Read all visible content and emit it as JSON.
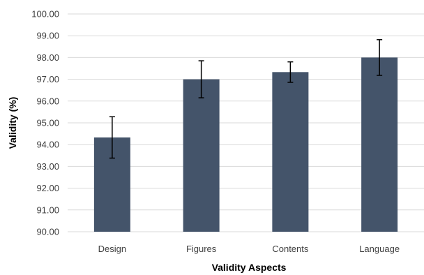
{
  "chart_data": {
    "type": "bar",
    "title": "",
    "xlabel": "Validity Aspects",
    "ylabel": "Validity (%)",
    "categories": [
      "Design",
      "Figures",
      "Contents",
      "Language"
    ],
    "values": [
      94.33,
      97.0,
      97.33,
      98.0
    ],
    "error": [
      0.95,
      0.85,
      0.47,
      0.82
    ],
    "ylim": [
      90,
      100
    ],
    "yticks": [
      "90.00",
      "91.00",
      "92.00",
      "93.00",
      "94.00",
      "95.00",
      "96.00",
      "97.00",
      "98.00",
      "99.00",
      "100.00"
    ],
    "grid": true,
    "legend": "none",
    "bar_color": "#44546a"
  }
}
